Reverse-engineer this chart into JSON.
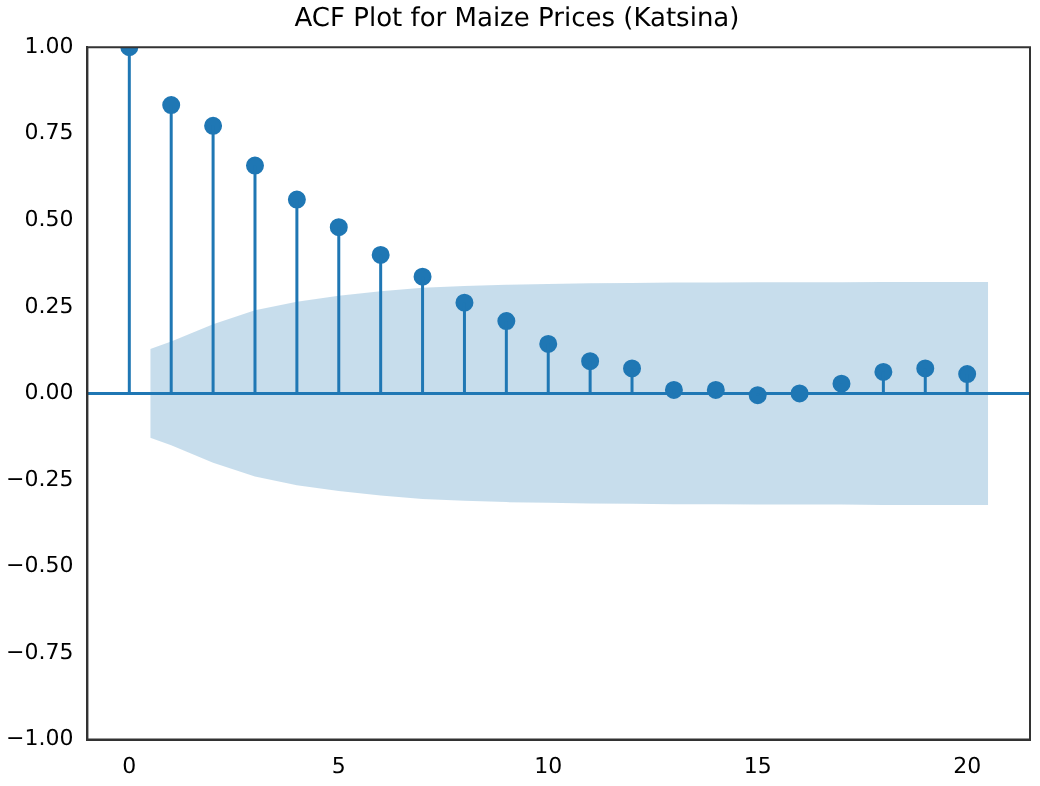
{
  "chart_data": {
    "type": "lollipop",
    "title": "ACF Plot for Maize Prices (Katsina)",
    "x": [
      0,
      1,
      2,
      3,
      4,
      5,
      6,
      7,
      8,
      9,
      10,
      11,
      12,
      13,
      14,
      15,
      16,
      17,
      18,
      19,
      20
    ],
    "series": [
      {
        "color": "#1f77b4",
        "marker": "circle",
        "values": [
          1.0,
          0.833,
          0.773,
          0.658,
          0.56,
          0.48,
          0.4,
          0.337,
          0.262,
          0.209,
          0.143,
          0.093,
          0.072,
          0.01,
          0.01,
          -0.005,
          0.0,
          0.028,
          0.062,
          0.072,
          0.056
        ]
      },
      {
        "type": "line",
        "color": "#1f77b4",
        "marker": "none",
        "x": [
          -1,
          0.5,
          1,
          2,
          3,
          4,
          5,
          6,
          7,
          8,
          9,
          10,
          11,
          12,
          13,
          14,
          15,
          16,
          17,
          18,
          19,
          20,
          20.5,
          21.5
        ],
        "values": [
          0,
          0,
          0,
          0,
          0,
          0,
          0,
          0,
          0,
          0,
          0,
          0,
          0,
          0,
          0,
          0,
          0,
          0,
          0,
          0,
          0,
          0,
          0,
          0
        ],
        "lower": [
          null,
          -0.128,
          -0.15,
          -0.2,
          -0.24,
          -0.265,
          -0.282,
          -0.295,
          -0.305,
          -0.31,
          -0.314,
          -0.316,
          -0.318,
          -0.319,
          -0.32,
          -0.32,
          -0.321,
          -0.321,
          -0.321,
          -0.322,
          -0.322,
          -0.322,
          -0.322,
          null
        ],
        "upper": [
          null,
          0.128,
          0.15,
          0.2,
          0.24,
          0.265,
          0.282,
          0.295,
          0.305,
          0.31,
          0.314,
          0.316,
          0.318,
          0.319,
          0.32,
          0.32,
          0.321,
          0.321,
          0.321,
          0.322,
          0.322,
          0.322,
          0.322,
          null
        ]
      }
    ],
    "xlim": [
      -1.0,
      21.5
    ],
    "xticks": [
      0,
      5,
      10,
      15,
      20
    ],
    "ylim": [
      -1,
      1
    ],
    "yticks": [
      {
        "value": -1,
        "label": "−1.00"
      },
      {
        "value": -0.75,
        "label": "−0.75"
      },
      {
        "value": -0.5,
        "label": "−0.50"
      },
      {
        "value": -0.25,
        "label": "−0.25"
      },
      {
        "value": 0,
        "label": "0.00"
      },
      {
        "value": 0.25,
        "label": "0.25"
      },
      {
        "value": 0.5,
        "label": "0.50"
      },
      {
        "value": 0.75,
        "label": "0.75"
      },
      {
        "value": 1,
        "label": "1.00"
      }
    ],
    "grid": false,
    "legend": false
  }
}
